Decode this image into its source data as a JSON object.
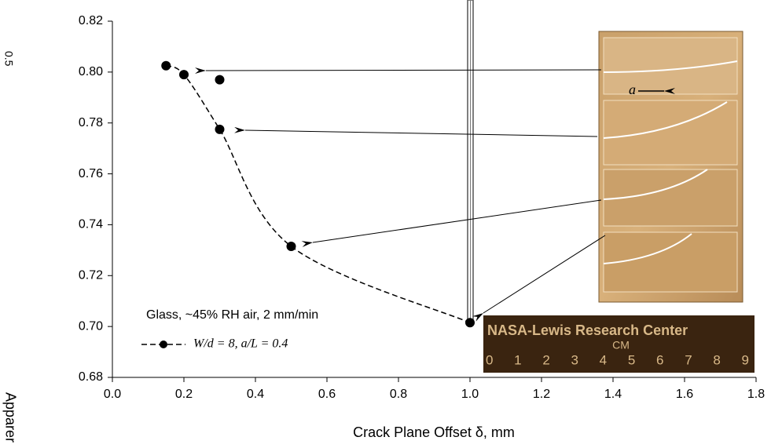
{
  "chart_data": {
    "type": "scatter",
    "x_label": "Crack Plane Offset δ, mm",
    "y_label": "Apparer",
    "corner_text": "0.5",
    "annotation": "Glass, ~45% RH air, 2 mm/min",
    "photo_texts": {
      "crack": "a",
      "banner": "NASA-Lewis Research Center",
      "unit": "CM",
      "scale": "0 1 2 3 4 5 6 7 8 9"
    },
    "series": [
      {
        "name": "W/d = 8, a/L = 0.4",
        "color": "#000000",
        "x": [
          0.15,
          0.2,
          0.3,
          0.3,
          0.5,
          1.0
        ],
        "values": [
          0.8025,
          0.799,
          0.797,
          0.7775,
          0.7315,
          0.7015
        ]
      }
    ],
    "curve": {
      "x": [
        0.15,
        0.2,
        0.3,
        0.5,
        1.0
      ],
      "values": [
        0.8025,
        0.799,
        0.7775,
        0.7315,
        0.7015
      ]
    },
    "xlim": [
      0,
      1.8
    ],
    "xticks": [
      {
        "value": 0,
        "label": "0.0"
      },
      0.2,
      0.4,
      0.6,
      0.8,
      {
        "value": 1,
        "label": "1.0"
      },
      1.2,
      1.4,
      1.6,
      1.8
    ],
    "ylim": [
      0.68,
      0.82
    ],
    "yticks": [
      0.68,
      {
        "value": 0.7,
        "label": "0.70"
      },
      0.72,
      0.74,
      0.76,
      0.78,
      {
        "value": 0.8,
        "label": "0.80"
      },
      0.82
    ]
  }
}
